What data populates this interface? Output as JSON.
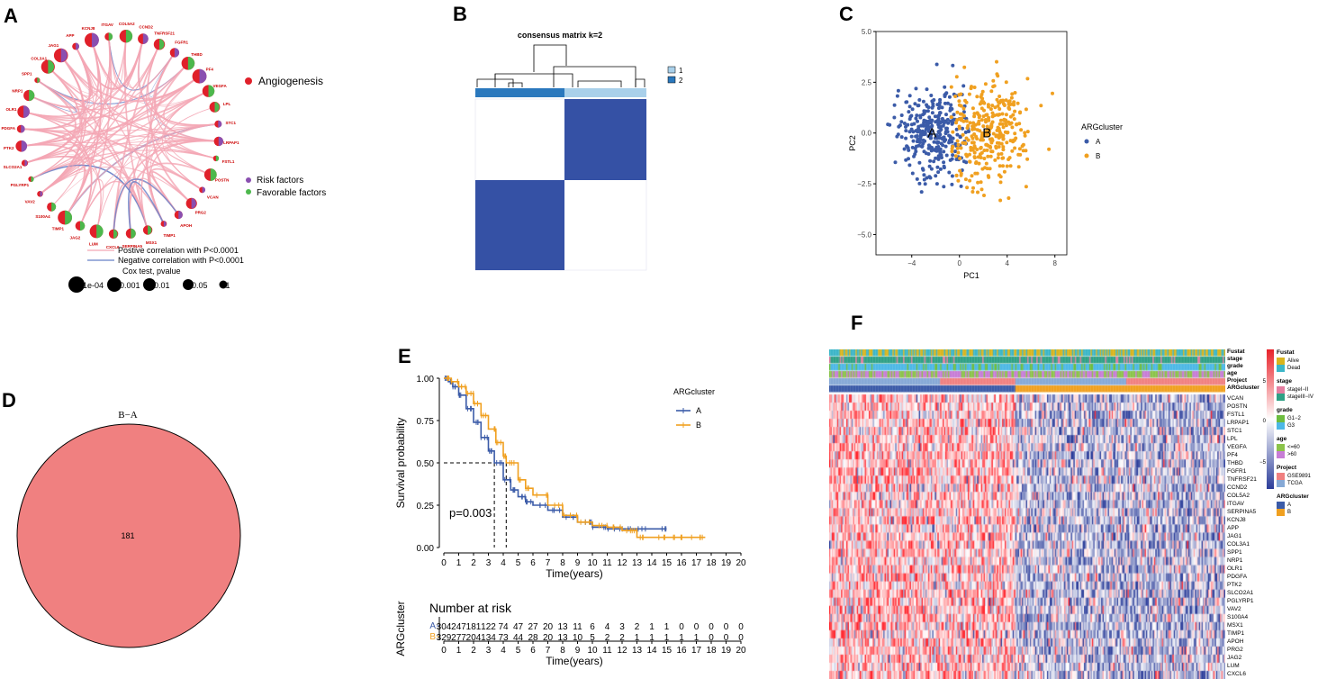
{
  "panels": {
    "a": "A",
    "b": "B",
    "c": "C",
    "d": "D",
    "e": "E",
    "f": "F"
  },
  "colors": {
    "clusterA": "#3b5ba8",
    "clusterB": "#f0a020",
    "heatLow": "#2b3d9a",
    "heatHigh": "#e8222a",
    "consensus": "#3551a5",
    "pink": "#f4a6b4",
    "blue": "#6680c8",
    "venn": "#f08080",
    "risk": "#8a4fb0",
    "favorable": "#4cb84c",
    "red": "#e0202a"
  },
  "panelA": {
    "legend_angiogenesis": "Angiogenesis",
    "legend_risk": "Risk factors",
    "legend_favorable": "Favorable factors",
    "legend_positive": "Postive correlation with P<0.0001",
    "legend_negative": "Negative correlation with P<0.0001",
    "cox_title": "Cox test, pvalue",
    "cox_levels": [
      "1e-04",
      "0.001",
      "0.01",
      "0.05",
      "1"
    ],
    "genes": [
      "CCND2",
      "TNFRSF21",
      "FGFR1",
      "THBD",
      "PF4",
      "VEGFA",
      "LPL",
      "STC1",
      "LRPAP1",
      "FSTL1",
      "POSTN",
      "VCAN",
      "PRG2",
      "APOH",
      "TIMP1",
      "MSX1",
      "SERPINA5",
      "CXCL6",
      "LUM",
      "JAG2",
      "TIMP1",
      "S100A4",
      "VAV2",
      "PGLYRP1",
      "SLCO2A1",
      "PTK2",
      "PDGFA",
      "OLR1",
      "NRP1",
      "SPP1",
      "COL3A1",
      "JAG1",
      "APP",
      "KCNJ8",
      "ITGAV",
      "COL5A2"
    ]
  },
  "panelB": {
    "title": "consensus matrix k=2",
    "legend": [
      "1",
      "2"
    ]
  },
  "panelC": {
    "chart_data": {
      "type": "scatter",
      "xlabel": "PC1",
      "ylabel": "PC2",
      "xlim": [
        -7,
        9
      ],
      "ylim": [
        -6,
        5
      ],
      "xticks": [
        -4,
        0,
        4,
        8
      ],
      "yticks": [
        5.0,
        2.5,
        0.0,
        -2.5,
        -5.0
      ],
      "ytick_labels": [
        "5.0",
        "2.5",
        "0.0",
        "-2.5",
        "-5.0"
      ],
      "legend_title": "ARGcluster",
      "series": [
        {
          "name": "A",
          "label": "A",
          "center": [
            -2.3,
            0.0
          ],
          "spread": [
            1.5,
            1.1
          ],
          "n": 330
        },
        {
          "name": "B",
          "label": "B",
          "center": [
            2.3,
            0.0
          ],
          "spread": [
            1.6,
            1.3
          ],
          "n": 330
        }
      ]
    }
  },
  "panelD": {
    "title": "B−A",
    "count": "181"
  },
  "panelE": {
    "chart_data": {
      "type": "line",
      "xlabel": "Time(years)",
      "ylabel": "Survival probability",
      "xlim": [
        0,
        20
      ],
      "ylim": [
        0,
        1
      ],
      "xticks": [
        0,
        1,
        2,
        3,
        4,
        5,
        6,
        7,
        8,
        9,
        10,
        11,
        12,
        13,
        14,
        15,
        16,
        17,
        18,
        19,
        20
      ],
      "yticks": [
        "0.00",
        "0.25",
        "0.50",
        "0.75",
        "1.00"
      ],
      "legend_title": "ARGcluster",
      "pvalue": "p=0.003",
      "median": {
        "A": 3.4,
        "B": 4.2
      },
      "series": [
        {
          "name": "A",
          "x": [
            0,
            0.3,
            0.6,
            1,
            1.5,
            2,
            2.5,
            3,
            3.4,
            4,
            4.5,
            5,
            5.5,
            6,
            7,
            8,
            9,
            10,
            11,
            12,
            13,
            14,
            15
          ],
          "y": [
            1,
            0.98,
            0.95,
            0.9,
            0.82,
            0.74,
            0.65,
            0.57,
            0.5,
            0.4,
            0.34,
            0.3,
            0.27,
            0.25,
            0.22,
            0.18,
            0.15,
            0.12,
            0.11,
            0.11,
            0.11,
            0.11,
            0.11
          ]
        },
        {
          "name": "B",
          "x": [
            0,
            0.5,
            1,
            1.5,
            2,
            2.5,
            3,
            3.5,
            4,
            4.2,
            5,
            5.5,
            6,
            7,
            8,
            9,
            10,
            11,
            12,
            12.8,
            13,
            14,
            15,
            16,
            17,
            17.6
          ],
          "y": [
            1,
            0.98,
            0.95,
            0.91,
            0.85,
            0.78,
            0.7,
            0.62,
            0.54,
            0.5,
            0.4,
            0.35,
            0.31,
            0.25,
            0.19,
            0.15,
            0.13,
            0.12,
            0.1,
            0.1,
            0.06,
            0.06,
            0.06,
            0.06,
            0.06,
            0.06
          ]
        }
      ]
    },
    "risk_title": "Number at risk",
    "risk_ylabel": "ARGcluster",
    "risk_rows": [
      {
        "label": "A",
        "values": [
          "304",
          "247",
          "181",
          "122",
          "74",
          "47",
          "27",
          "20",
          "13",
          "11",
          "6",
          "4",
          "3",
          "2",
          "1",
          "1",
          "0",
          "0",
          "0",
          "0",
          "0"
        ]
      },
      {
        "label": "B",
        "values": [
          "329",
          "277",
          "204",
          "134",
          "73",
          "44",
          "28",
          "20",
          "13",
          "10",
          "5",
          "2",
          "2",
          "1",
          "1",
          "1",
          "1",
          "1",
          "0",
          "0",
          "0"
        ]
      }
    ],
    "risk_xlabel": "Time(years)"
  },
  "panelF": {
    "annotation_rows": [
      "Fustat",
      "stage",
      "grade",
      "age",
      "Project",
      "ARGcluster"
    ],
    "genes": [
      "VCAN",
      "POSTN",
      "FSTL1",
      "LRPAP1",
      "STC1",
      "LPL",
      "VEGFA",
      "PF4",
      "THBD",
      "FGFR1",
      "TNFRSF21",
      "CCND2",
      "COL5A2",
      "ITGAV",
      "SERPINA5",
      "KCNJ8",
      "APP",
      "JAG1",
      "COL3A1",
      "SPP1",
      "NRP1",
      "OLR1",
      "PDGFA",
      "PTK2",
      "SLCO2A1",
      "PGLYRP1",
      "VAV2",
      "S100A4",
      "MSX1",
      "TIMP1",
      "APOH",
      "PRG2",
      "JAG2",
      "LUM",
      "CXCL6"
    ],
    "scale_ticks": [
      "5",
      "0",
      "−5"
    ],
    "legend": [
      {
        "title": "Fustat",
        "items": [
          {
            "label": "Alive",
            "color": "#d9b41c"
          },
          {
            "label": "Dead",
            "color": "#3cb6c8"
          }
        ]
      },
      {
        "title": "stage",
        "items": [
          {
            "label": "stageI−II",
            "color": "#e57da0"
          },
          {
            "label": "stageIII−IV",
            "color": "#2fa085"
          }
        ]
      },
      {
        "title": "grade",
        "items": [
          {
            "label": "G1−2",
            "color": "#6dbd3f"
          },
          {
            "label": "G3",
            "color": "#4db8e6"
          }
        ]
      },
      {
        "title": "age",
        "items": [
          {
            "label": "<=60",
            "color": "#8bc34a"
          },
          {
            "label": ">60",
            "color": "#c77dd6"
          }
        ]
      },
      {
        "title": "Project",
        "items": [
          {
            "label": "GSE9891",
            "color": "#f08080"
          },
          {
            "label": "TCGA",
            "color": "#86a9d6"
          }
        ]
      },
      {
        "title": "ARGcluster",
        "items": [
          {
            "label": "A",
            "color": "#3b5ba8"
          },
          {
            "label": "B",
            "color": "#f0a020"
          }
        ]
      }
    ]
  }
}
